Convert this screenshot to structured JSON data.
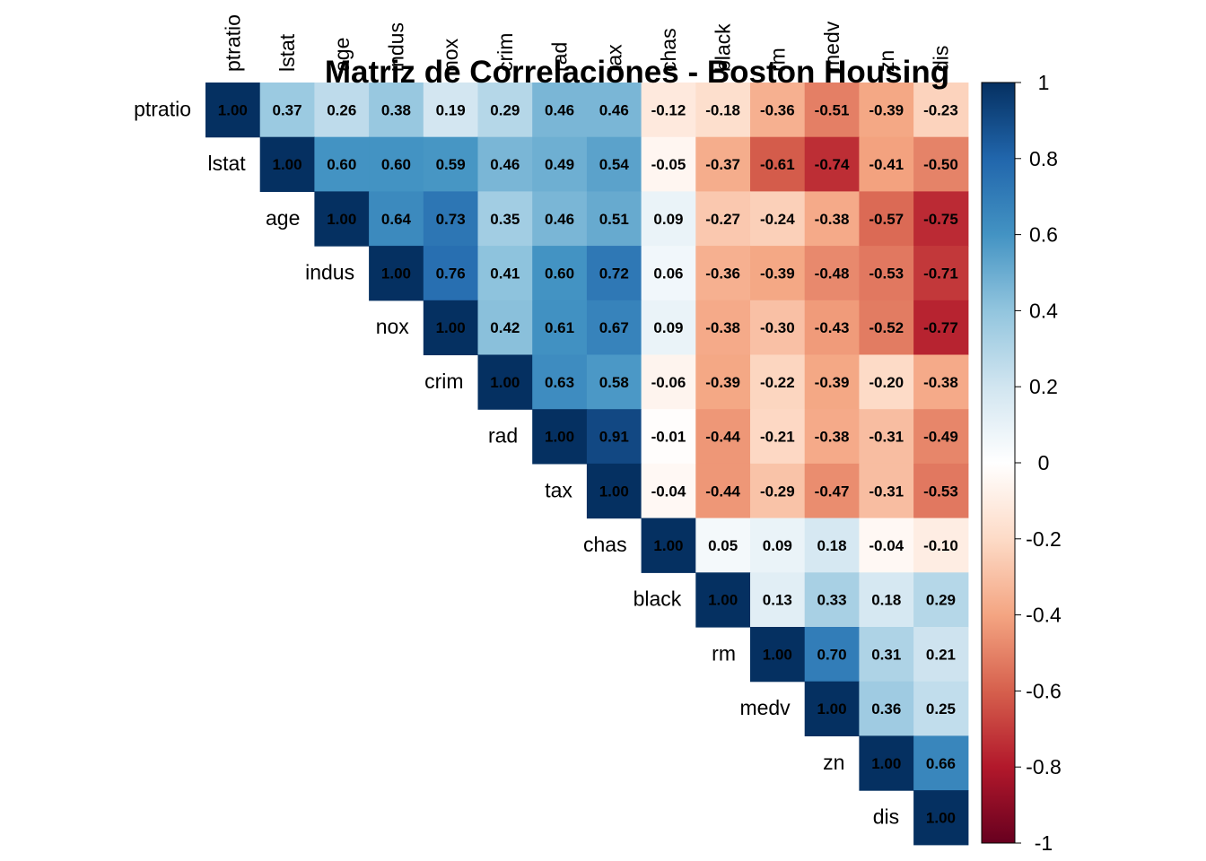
{
  "chart_data": {
    "type": "heatmap",
    "title": "Matriz de Correlaciones - Boston Housing",
    "variables": [
      "ptratio",
      "lstat",
      "age",
      "indus",
      "nox",
      "crim",
      "rad",
      "tax",
      "chas",
      "black",
      "rm",
      "medv",
      "zn",
      "dis"
    ],
    "matrix": [
      [
        "1.00",
        "0.37",
        "0.26",
        "0.38",
        "0.19",
        "0.29",
        "0.46",
        "0.46",
        "-0.12",
        "-0.18",
        "-0.36",
        "-0.51",
        "-0.39",
        "-0.23"
      ],
      [
        null,
        "1.00",
        "0.60",
        "0.60",
        "0.59",
        "0.46",
        "0.49",
        "0.54",
        "-0.05",
        "-0.37",
        "-0.61",
        "-0.74",
        "-0.41",
        "-0.50"
      ],
      [
        null,
        null,
        "1.00",
        "0.64",
        "0.73",
        "0.35",
        "0.46",
        "0.51",
        "0.09",
        "-0.27",
        "-0.24",
        "-0.38",
        "-0.57",
        "-0.75"
      ],
      [
        null,
        null,
        null,
        "1.00",
        "0.76",
        "0.41",
        "0.60",
        "0.72",
        "0.06",
        "-0.36",
        "-0.39",
        "-0.48",
        "-0.53",
        "-0.71"
      ],
      [
        null,
        null,
        null,
        null,
        "1.00",
        "0.42",
        "0.61",
        "0.67",
        "0.09",
        "-0.38",
        "-0.30",
        "-0.43",
        "-0.52",
        "-0.77"
      ],
      [
        null,
        null,
        null,
        null,
        null,
        "1.00",
        "0.63",
        "0.58",
        "-0.06",
        "-0.39",
        "-0.22",
        "-0.39",
        "-0.20",
        "-0.38"
      ],
      [
        null,
        null,
        null,
        null,
        null,
        null,
        "1.00",
        "0.91",
        "-0.01",
        "-0.44",
        "-0.21",
        "-0.38",
        "-0.31",
        "-0.49"
      ],
      [
        null,
        null,
        null,
        null,
        null,
        null,
        null,
        "1.00",
        "-0.04",
        "-0.44",
        "-0.29",
        "-0.47",
        "-0.31",
        "-0.53"
      ],
      [
        null,
        null,
        null,
        null,
        null,
        null,
        null,
        null,
        "1.00",
        "0.05",
        "0.09",
        "0.18",
        "-0.04",
        "-0.10"
      ],
      [
        null,
        null,
        null,
        null,
        null,
        null,
        null,
        null,
        null,
        "1.00",
        "0.13",
        "0.33",
        "0.18",
        "0.29"
      ],
      [
        null,
        null,
        null,
        null,
        null,
        null,
        null,
        null,
        null,
        null,
        "1.00",
        "0.70",
        "0.31",
        "0.21"
      ],
      [
        null,
        null,
        null,
        null,
        null,
        null,
        null,
        null,
        null,
        null,
        null,
        "1.00",
        "0.36",
        "0.25"
      ],
      [
        null,
        null,
        null,
        null,
        null,
        null,
        null,
        null,
        null,
        null,
        null,
        null,
        "1.00",
        "0.66"
      ],
      [
        null,
        null,
        null,
        null,
        null,
        null,
        null,
        null,
        null,
        null,
        null,
        null,
        null,
        "1.00"
      ]
    ],
    "colorbar": {
      "ticks": [
        "1",
        "0.8",
        "0.6",
        "0.4",
        "0.2",
        "0",
        "-0.2",
        "-0.4",
        "-0.6",
        "-0.8",
        "-1"
      ],
      "range": [
        -1,
        1
      ]
    },
    "colors": {
      "strong_negative": "#67001F",
      "negative": "#B2182B",
      "mid_negative": "#D6604D",
      "light_negative": "#F4A582",
      "pale_negative": "#FDDBC7",
      "neutral": "#FFFFFF",
      "pale_positive": "#D1E5F0",
      "light_positive": "#92C5DE",
      "mid_positive": "#4393C3",
      "positive": "#2166AC",
      "strong_positive": "#053061"
    }
  }
}
